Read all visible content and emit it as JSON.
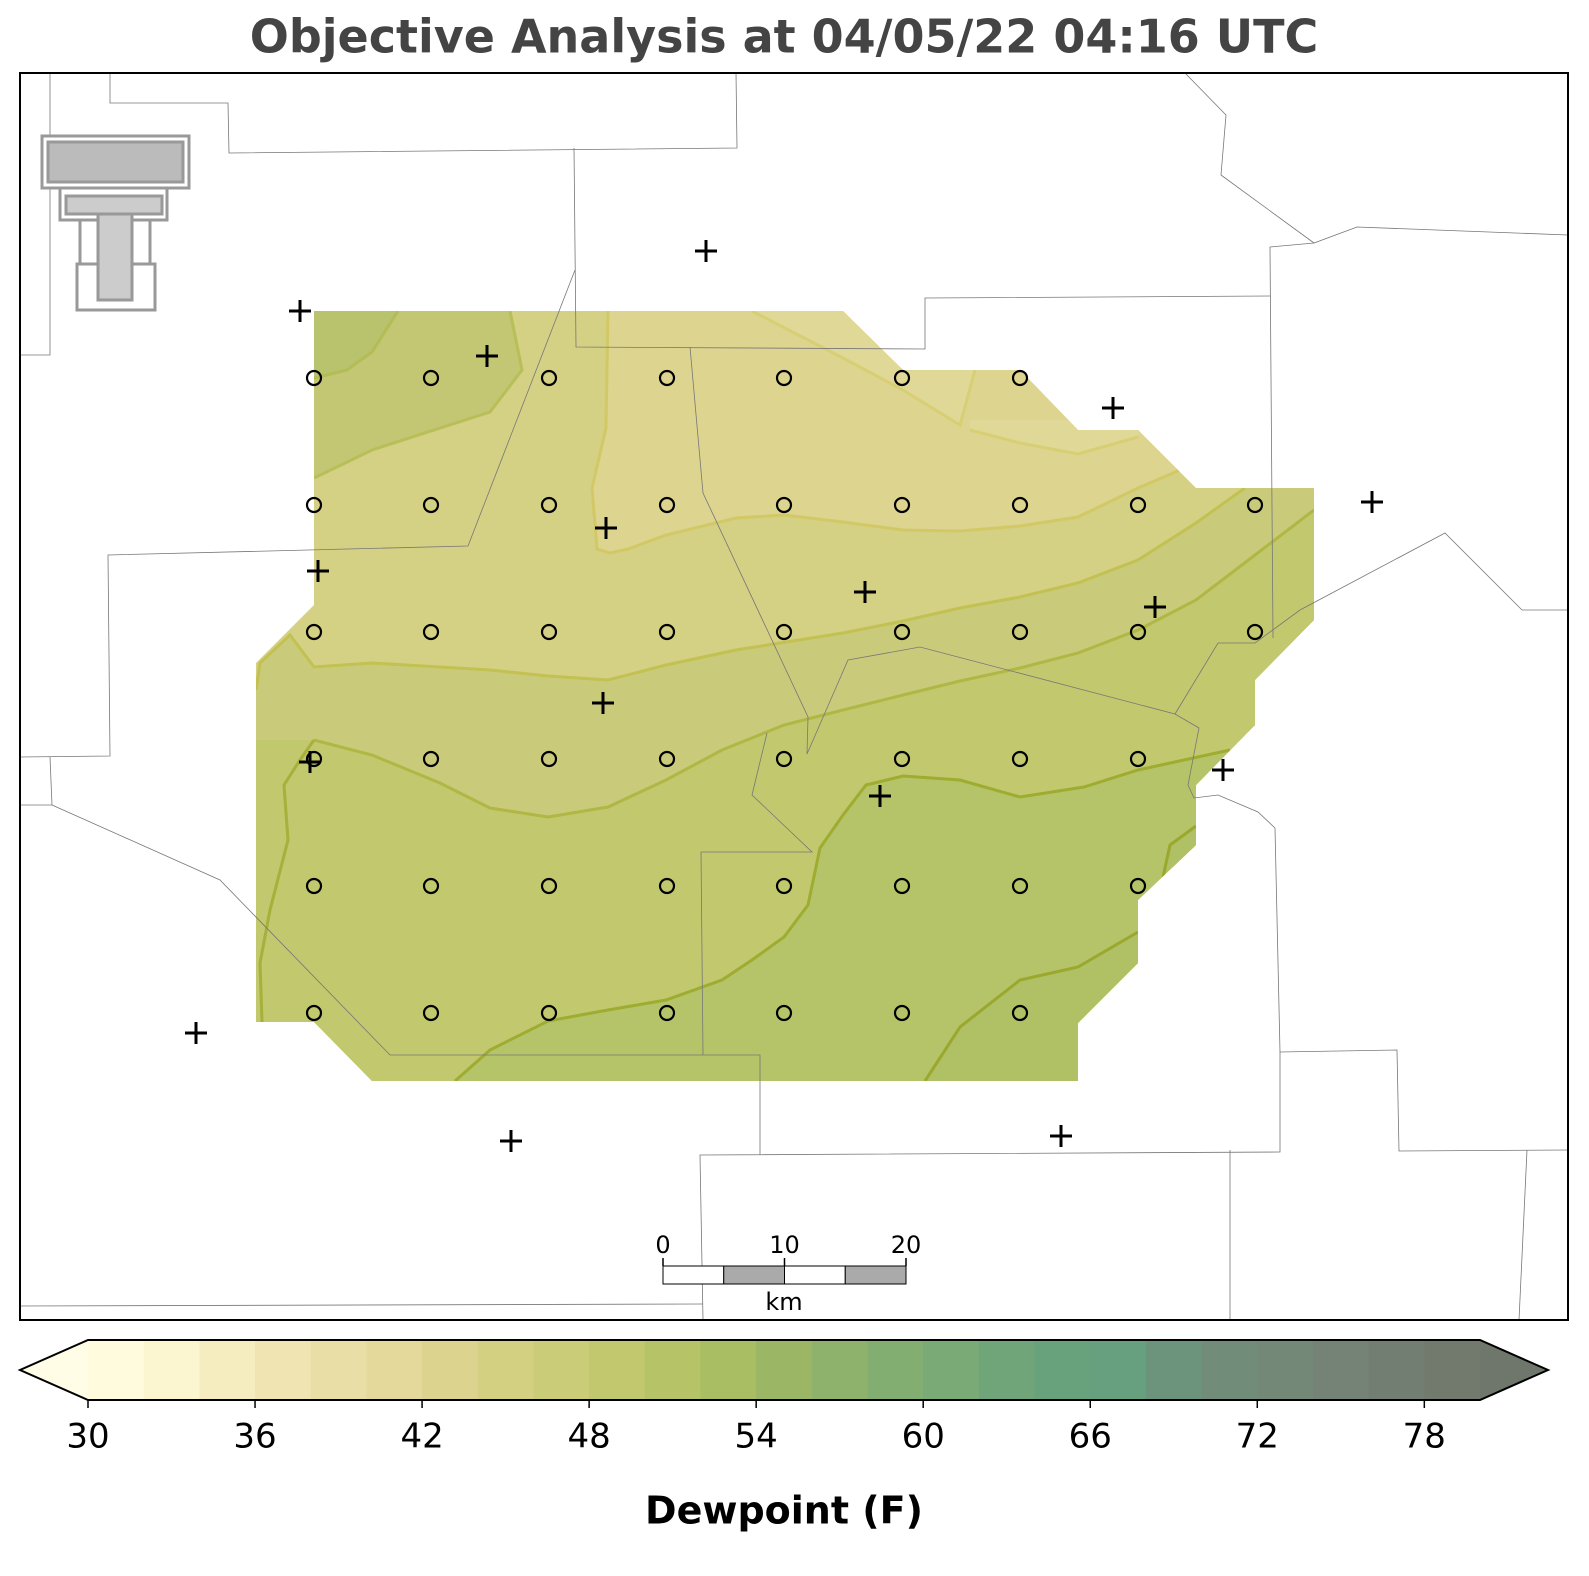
{
  "title": "Objective Analysis at 04/05/22 04:16 UTC",
  "colorbar": {
    "label": "Dewpoint (F)",
    "lim": [
      30,
      80
    ],
    "ticks": [
      30,
      36,
      42,
      48,
      54,
      60,
      66,
      72,
      78
    ],
    "colors": [
      "#fffbdc",
      "#fcf6d0",
      "#f5ecc0",
      "#efe4b2",
      "#e9dea6",
      "#e4d99a",
      "#dcd48e",
      "#d4d082",
      "#cbcc78",
      "#c1c86e",
      "#b6c366",
      "#a9bd62",
      "#9bb766",
      "#8eb16c",
      "#83ae72",
      "#7aaa76",
      "#70a57a",
      "#68a27c",
      "#66a07e",
      "#6c947c",
      "#728c7a",
      "#748878",
      "#748376",
      "#737e72",
      "#727a6e"
    ],
    "extend_colors": [
      "#fffde6",
      "#6f776d"
    ]
  },
  "scale_bar": {
    "ticks": [
      0,
      10,
      20
    ],
    "unit": "km"
  }
}
